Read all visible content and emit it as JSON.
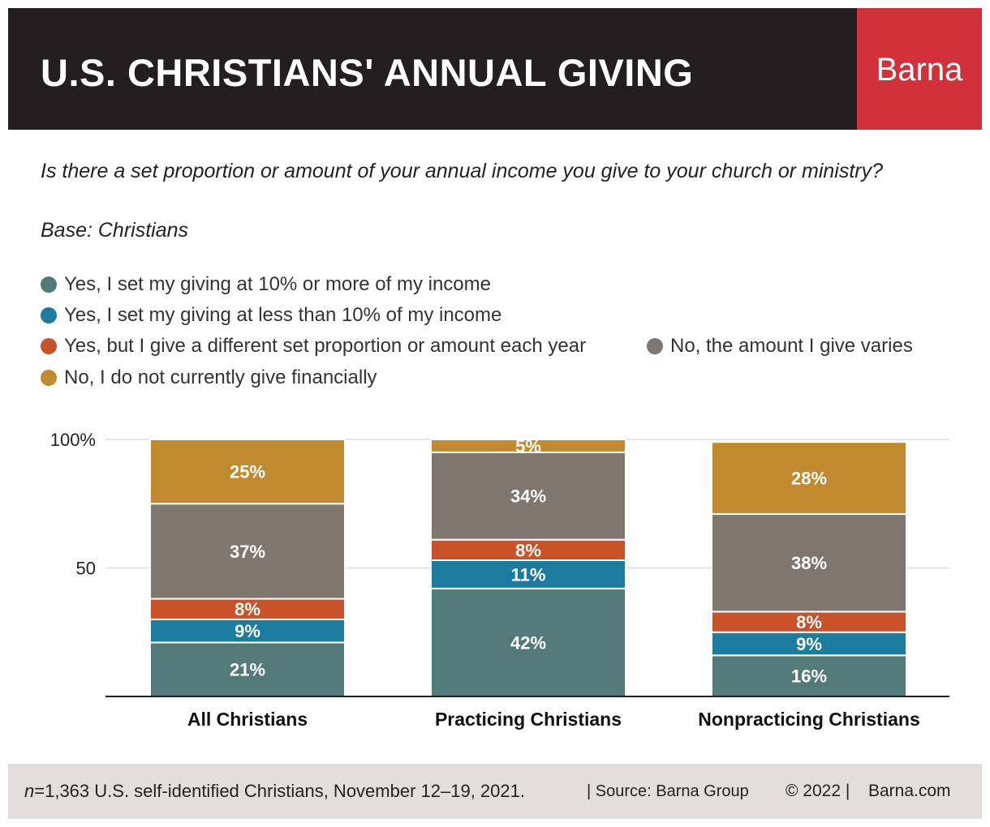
{
  "header": {
    "title": "U.S. CHRISTIANS' ANNUAL GIVING",
    "logo": "Barna"
  },
  "question": "Is there a set proportion or amount of your annual income you give to your church or ministry?",
  "base": "Base: Christians",
  "colors": {
    "header_bg": "#231f20",
    "logo_bg": "#d0313b",
    "footer_bg": "#e3dede"
  },
  "legend": [
    {
      "label": "Yes, I set my giving at 10% or more of my income",
      "color": "#527a79"
    },
    {
      "label": "Yes, I set my giving at less than 10% of my income",
      "color": "#1c7c9f"
    },
    {
      "label": "Yes, but I give a different set proportion or amount each year",
      "color": "#c8532a"
    },
    {
      "label": "No, the amount I give varies",
      "color": "#7e766f"
    },
    {
      "label": "No, I do not currently give financially",
      "color": "#c28a2e"
    }
  ],
  "chart_data": {
    "type": "bar",
    "stacked": true,
    "categories": [
      "All Christians",
      "Practicing Christians",
      "Nonpracticing Christians"
    ],
    "ylim": [
      0,
      100
    ],
    "yticks": [
      50,
      100
    ],
    "ytick_labels": [
      "50",
      "100%"
    ],
    "grid": true,
    "series": [
      {
        "name": "Yes, I set my giving at 10% or more of my income",
        "color": "#527a79",
        "values": [
          21,
          42,
          16
        ]
      },
      {
        "name": "Yes, I set my giving at less than 10% of my income",
        "color": "#1c7c9f",
        "values": [
          9,
          11,
          9
        ]
      },
      {
        "name": "Yes, but I give a different set proportion or amount each year",
        "color": "#c8532a",
        "values": [
          8,
          8,
          8
        ]
      },
      {
        "name": "No, the amount I give varies",
        "color": "#7e766f",
        "values": [
          37,
          34,
          38
        ]
      },
      {
        "name": "No, I do not currently give financially",
        "color": "#c28a2e",
        "values": [
          25,
          5,
          28
        ]
      }
    ]
  },
  "footer": {
    "n_label": "n",
    "note": "=1,363 U.S. self-identified Christians, November 12–19, 2021.",
    "source": "| Source: Barna Group",
    "copyright": "© 2022 |",
    "site": "Barna.com"
  }
}
